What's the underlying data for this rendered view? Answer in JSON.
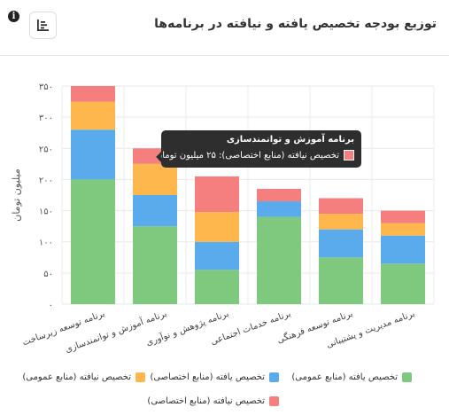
{
  "header": {
    "title": "توزیع بودجه تخصیص یافته و نیافته در برنامه‌ها",
    "toolbar_icon": "list-icon",
    "info_icon": "info-icon",
    "info_glyph": "i"
  },
  "chart_data": {
    "type": "bar",
    "stacked": true,
    "ylabel": "میلیون تومان",
    "ylim": [
      0,
      350
    ],
    "yticks": [
      0,
      50,
      100,
      150,
      200,
      250,
      300,
      350
    ],
    "yticklabels": [
      "۰",
      "۵۰",
      "۱۰۰",
      "۱۵۰",
      "۲۰۰",
      "۲۵۰",
      "۳۰۰",
      "۳۵۰"
    ],
    "grid": true,
    "legend_position": "bottom",
    "categories": [
      "برنامه توسعه زیرساخت",
      "برنامه آموزش و توانمندسازی",
      "برنامه پژوهش و نوآوری",
      "برنامه خدمات اجتماعی",
      "برنامه توسعه فرهنگی",
      "برنامه مدیریت و پشتیبانی"
    ],
    "series": [
      {
        "name": "تخصیص یافته (منابع عمومی)",
        "color": "#7fc97f",
        "values": [
          200,
          125,
          55,
          140,
          75,
          65
        ]
      },
      {
        "name": "تخصیص یافته (منابع اختصاصی)",
        "color": "#5aabec",
        "values": [
          80,
          50,
          45,
          25,
          45,
          45
        ]
      },
      {
        "name": "تخصیص نیافته (منابع عمومی)",
        "color": "#fdb74c",
        "values": [
          45,
          50,
          48,
          0,
          25,
          20
        ]
      },
      {
        "name": "تخصیص نیافته (منابع اختصاصی)",
        "color": "#f57f7f",
        "values": [
          25,
          25,
          57,
          20,
          25,
          20
        ]
      }
    ]
  },
  "tooltip": {
    "title": "برنامه آموزش و توانمندسازی",
    "text": "تخصیص نیافته (منابع اختصاصی): ۲۵ میلیون تومان",
    "color": "#f57f7f"
  }
}
